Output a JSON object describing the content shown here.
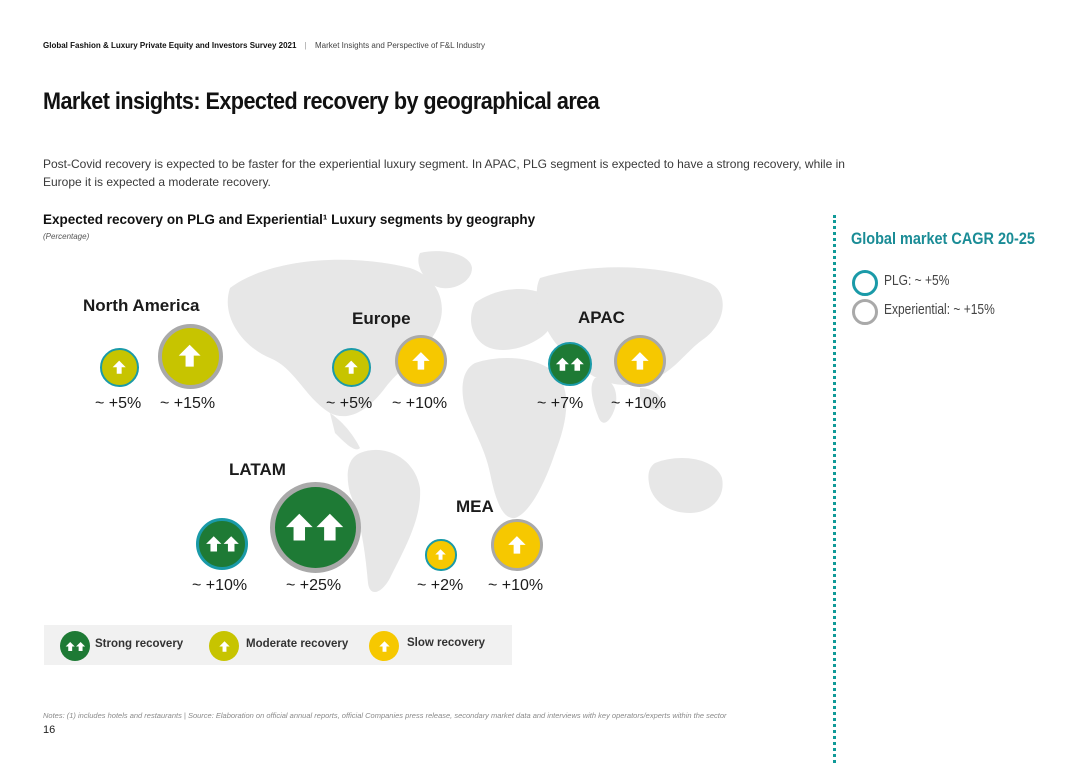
{
  "header": {
    "report_title": "Global Fashion & Luxury Private Equity and Investors Survey 2021",
    "separator": "|",
    "section": "Market Insights and Perspective of F&L Industry"
  },
  "page_title": "Market insights: Expected recovery by geographical area",
  "intro": "Post-Covid recovery is expected to be faster for the experiential luxury segment. In APAC, PLG segment is expected to have a strong recovery, while in Europe it is expected a moderate recovery.",
  "chart": {
    "title": "Expected recovery on PLG and Experiential¹ Luxury segments by geography",
    "subtitle": "(Percentage)"
  },
  "regions": {
    "north_america": {
      "name": "North America",
      "plg": "~ +5%",
      "exp": "~ +15%"
    },
    "europe": {
      "name": "Europe",
      "plg": "~ +5%",
      "exp": "~ +10%"
    },
    "apac": {
      "name": "APAC",
      "plg": "~ +7%",
      "exp": "~ +10%"
    },
    "latam": {
      "name": "LATAM",
      "plg": "~ +10%",
      "exp": "~ +25%"
    },
    "mea": {
      "name": "MEA",
      "plg": "~ +2%",
      "exp": "~ +10%"
    }
  },
  "chart_data": {
    "type": "bubble",
    "title": "Expected recovery on PLG and Experiential¹ Luxury segments by geography",
    "unit": "(Percentage)",
    "series": [
      {
        "name": "PLG",
        "values": [
          5,
          5,
          7,
          10,
          2
        ]
      },
      {
        "name": "Experiential",
        "values": [
          15,
          10,
          10,
          25,
          10
        ]
      }
    ],
    "categories": [
      "North America",
      "Europe",
      "APAC",
      "LATAM",
      "MEA"
    ],
    "recovery_type": {
      "North America": {
        "PLG": "Moderate recovery",
        "Experiential": "Moderate recovery"
      },
      "Europe": {
        "PLG": "Moderate recovery",
        "Experiential": "Slow recovery"
      },
      "APAC": {
        "PLG": "Strong recovery",
        "Experiential": "Slow recovery"
      },
      "LATAM": {
        "PLG": "Strong recovery",
        "Experiential": "Strong recovery"
      },
      "MEA": {
        "PLG": "Slow recovery",
        "Experiential": "Slow recovery"
      }
    }
  },
  "legend": {
    "strong": "Strong recovery",
    "moderate": "Moderate recovery",
    "slow": "Slow recovery"
  },
  "colors": {
    "strong": "#1e7a35",
    "moderate": "#c7c400",
    "slow": "#f6c800",
    "plg_ring": "#1a9aa8",
    "exp_ring": "#a9a9a9",
    "accent": "#1a8c96"
  },
  "sidebar": {
    "title": "Global market CAGR 20-25",
    "plg": "PLG: ~ +5%",
    "exp": "Experiential: ~ +15%"
  },
  "notes": "Notes: (1) includes hotels and restaurants | Source: Elaboration on official annual reports, official Companies press release, secondary market data and interviews with key operators/experts within the sector",
  "page_number": "16"
}
